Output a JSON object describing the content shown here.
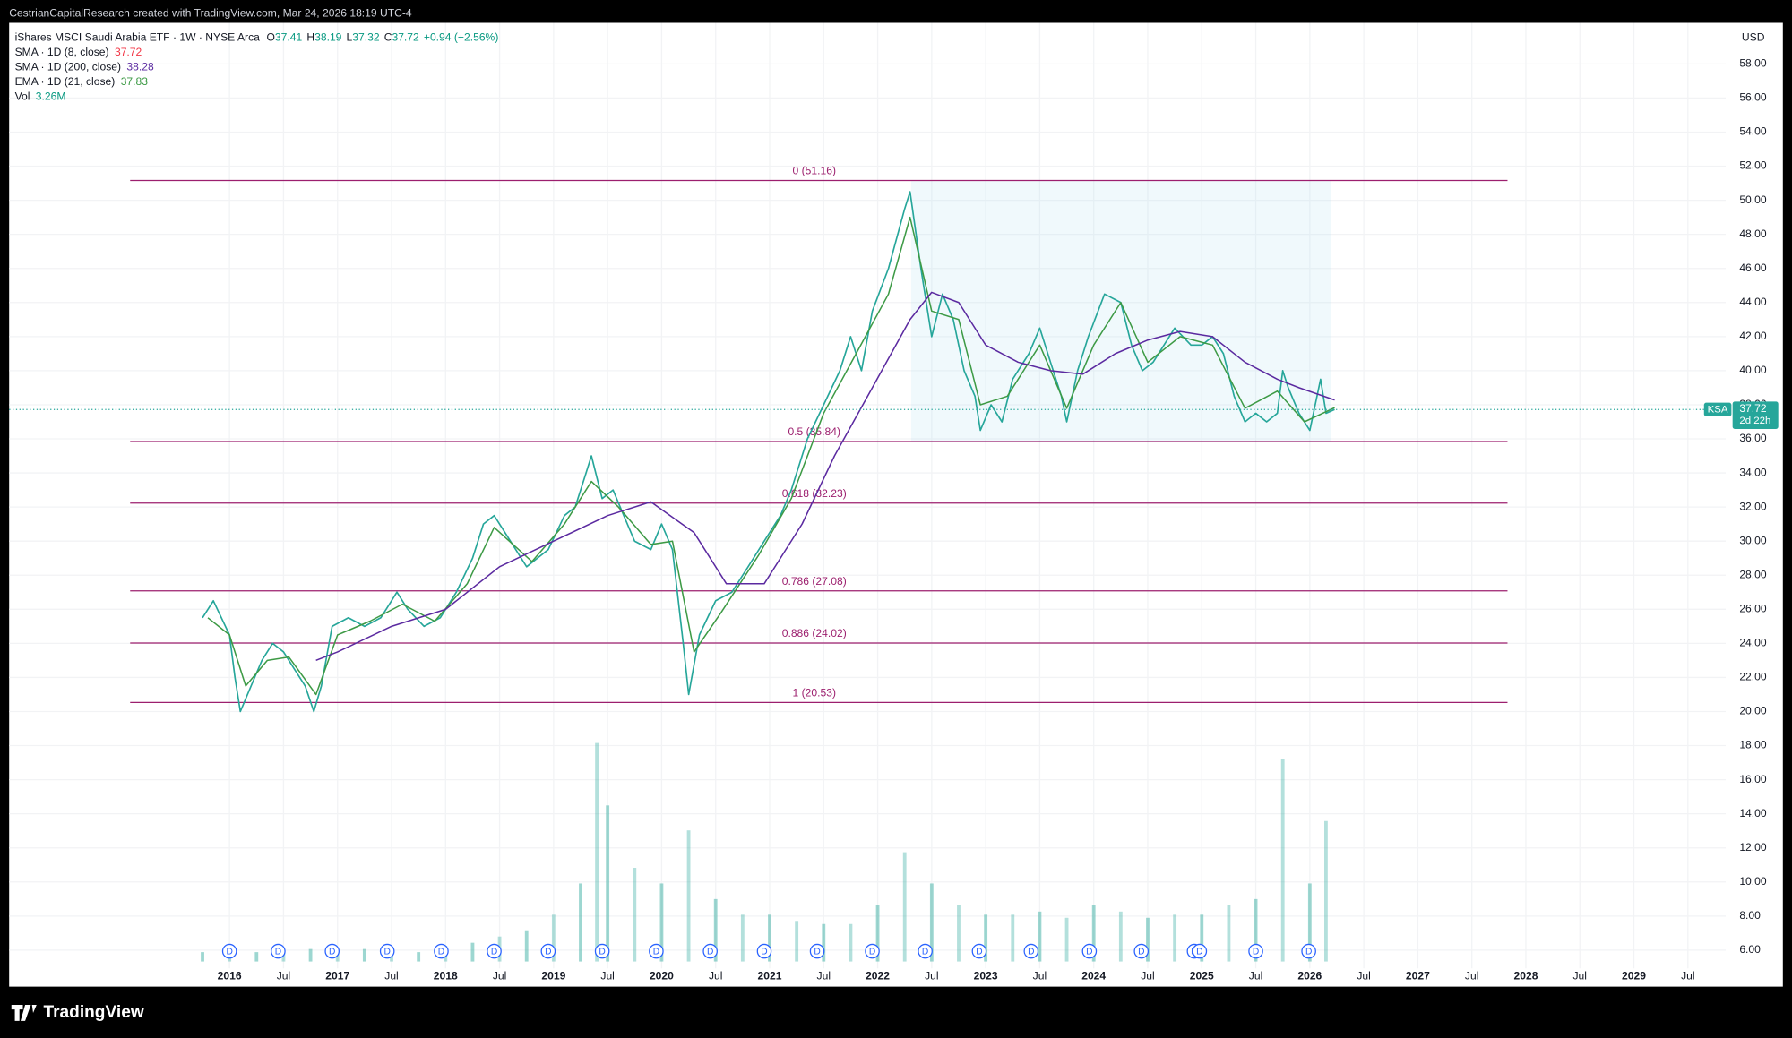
{
  "header": {
    "credit": "CestrianCapitalResearch created with TradingView.com, Mar 24, 2026 18:19 UTC-4",
    "brand": "TradingView"
  },
  "chart_data": {
    "type": "line",
    "legend": {
      "symbol": "iShares MSCI Saudi Arabia ETF · 1W · NYSE Arca",
      "ohlc": [
        {
          "label": "O",
          "value": 37.41
        },
        {
          "label": "H",
          "value": 38.19
        },
        {
          "label": "L",
          "value": 37.32
        },
        {
          "label": "C",
          "value": 37.72
        }
      ],
      "change": "+0.94 (+2.56%)",
      "indicators": [
        {
          "name": "SMA · 1D (8, close)",
          "value": 37.72,
          "color": "#f23645"
        },
        {
          "name": "SMA · 1D (200, close)",
          "value": 38.28,
          "color": "#5b2aa0"
        },
        {
          "name": "EMA · 1D (21, close)",
          "value": 37.83,
          "color": "#3d9a45"
        }
      ],
      "volume": {
        "name": "Vol",
        "value": "3.26M"
      }
    },
    "y_unit": "USD",
    "xlim": [
      2013.96,
      2029.85
    ],
    "ylim": [
      3.86,
      60.41
    ],
    "xticks": [
      {
        "value": 2016,
        "label": "2016"
      },
      {
        "value": 2016.5,
        "label": "Jul"
      },
      {
        "value": 2017,
        "label": "2017"
      },
      {
        "value": 2017.5,
        "label": "Jul"
      },
      {
        "value": 2018,
        "label": "2018"
      },
      {
        "value": 2018.5,
        "label": "Jul"
      },
      {
        "value": 2019,
        "label": "2019"
      },
      {
        "value": 2019.5,
        "label": "Jul"
      },
      {
        "value": 2020,
        "label": "2020"
      },
      {
        "value": 2020.5,
        "label": "Jul"
      },
      {
        "value": 2021,
        "label": "2021"
      },
      {
        "value": 2021.5,
        "label": "Jul"
      },
      {
        "value": 2022,
        "label": "2022"
      },
      {
        "value": 2022.5,
        "label": "Jul"
      },
      {
        "value": 2023,
        "label": "2023"
      },
      {
        "value": 2023.5,
        "label": "Jul"
      },
      {
        "value": 2024,
        "label": "2024"
      },
      {
        "value": 2024.5,
        "label": "Jul"
      },
      {
        "value": 2025,
        "label": "2025"
      },
      {
        "value": 2025.5,
        "label": "Jul"
      },
      {
        "value": 2026,
        "label": "2026"
      },
      {
        "value": 2026.5,
        "label": "Jul"
      },
      {
        "value": 2027,
        "label": "2027"
      },
      {
        "value": 2027.5,
        "label": "Jul"
      },
      {
        "value": 2028,
        "label": "2028"
      },
      {
        "value": 2028.5,
        "label": "Jul"
      },
      {
        "value": 2029,
        "label": "2029"
      },
      {
        "value": 2029.5,
        "label": "Jul"
      }
    ],
    "yticks": [
      {
        "value": 6,
        "label": "6.00"
      },
      {
        "value": 8,
        "label": "8.00"
      },
      {
        "value": 10,
        "label": "10.00"
      },
      {
        "value": 12,
        "label": "12.00"
      },
      {
        "value": 14,
        "label": "14.00"
      },
      {
        "value": 16,
        "label": "16.00"
      },
      {
        "value": 18,
        "label": "18.00"
      },
      {
        "value": 20,
        "label": "20.00"
      },
      {
        "value": 22,
        "label": "22.00"
      },
      {
        "value": 24,
        "label": "24.00"
      },
      {
        "value": 26,
        "label": "26.00"
      },
      {
        "value": 28,
        "label": "28.00"
      },
      {
        "value": 30,
        "label": "30.00"
      },
      {
        "value": 32,
        "label": "32.00"
      },
      {
        "value": 34,
        "label": "34.00"
      },
      {
        "value": 36,
        "label": "36.00"
      },
      {
        "value": 38,
        "label": "38.00"
      },
      {
        "value": 40,
        "label": "40.00"
      },
      {
        "value": 42,
        "label": "42.00"
      },
      {
        "value": 44,
        "label": "44.00"
      },
      {
        "value": 46,
        "label": "46.00"
      },
      {
        "value": 48,
        "label": "48.00"
      },
      {
        "value": 50,
        "label": "50.00"
      },
      {
        "value": 52,
        "label": "52.00"
      },
      {
        "value": 54,
        "label": "54.00"
      },
      {
        "value": 56,
        "label": "56.00"
      },
      {
        "value": 58,
        "label": "58.00"
      }
    ],
    "grid": true,
    "series": [
      {
        "name": "Price",
        "color": "#26a69a",
        "x": [
          2015.75,
          2015.85,
          2016.0,
          2016.05,
          2016.1,
          2016.2,
          2016.3,
          2016.4,
          2016.5,
          2016.6,
          2016.7,
          2016.78,
          2016.85,
          2016.95,
          2017.1,
          2017.25,
          2017.4,
          2017.5,
          2017.55,
          2017.65,
          2017.8,
          2017.95,
          2018.1,
          2018.25,
          2018.35,
          2018.45,
          2018.6,
          2018.75,
          2018.85,
          2018.95,
          2019.1,
          2019.2,
          2019.3,
          2019.35,
          2019.45,
          2019.55,
          2019.65,
          2019.75,
          2019.9,
          2020.0,
          2020.1,
          2020.2,
          2020.25,
          2020.35,
          2020.5,
          2020.65,
          2020.8,
          2020.95,
          2021.1,
          2021.2,
          2021.35,
          2021.5,
          2021.65,
          2021.75,
          2021.85,
          2021.95,
          2022.1,
          2022.25,
          2022.3,
          2022.4,
          2022.5,
          2022.6,
          2022.7,
          2022.8,
          2022.9,
          2022.95,
          2023.05,
          2023.15,
          2023.25,
          2023.4,
          2023.5,
          2023.6,
          2023.7,
          2023.75,
          2023.85,
          2023.95,
          2024.1,
          2024.25,
          2024.35,
          2024.45,
          2024.55,
          2024.65,
          2024.75,
          2024.9,
          2025.0,
          2025.1,
          2025.2,
          2025.3,
          2025.4,
          2025.5,
          2025.6,
          2025.7,
          2025.75,
          2025.8,
          2025.9,
          2026.0,
          2026.1,
          2026.15,
          2026.23
        ],
        "values": [
          25.5,
          26.5,
          24.5,
          22.0,
          20.0,
          21.5,
          23.0,
          24.0,
          23.5,
          22.5,
          21.5,
          20.0,
          21.5,
          25.0,
          25.5,
          25.0,
          25.5,
          26.5,
          27.0,
          26.0,
          25.0,
          25.5,
          27.0,
          29.0,
          31.0,
          31.5,
          30.0,
          28.5,
          29.0,
          29.5,
          31.5,
          32.0,
          34.0,
          35.0,
          32.5,
          33.0,
          31.5,
          30.0,
          29.5,
          31.0,
          29.5,
          24.0,
          21.0,
          24.5,
          26.5,
          27.0,
          28.5,
          30.0,
          31.5,
          33.0,
          36.0,
          38.0,
          40.0,
          42.0,
          40.0,
          43.5,
          46.0,
          49.5,
          50.5,
          46.0,
          42.0,
          44.5,
          43.0,
          40.0,
          38.5,
          36.5,
          38.0,
          37.0,
          39.5,
          41.0,
          42.5,
          40.5,
          38.5,
          37.0,
          40.0,
          42.0,
          44.5,
          44.0,
          41.5,
          40.0,
          40.5,
          41.5,
          42.5,
          41.5,
          41.5,
          42.0,
          41.0,
          38.5,
          37.0,
          37.5,
          37.0,
          37.5,
          40.0,
          39.0,
          37.5,
          36.5,
          39.5,
          37.5,
          37.72
        ]
      },
      {
        "name": "EMA · 1D (21, close)",
        "color": "#3d9a45",
        "x": [
          2015.8,
          2016.0,
          2016.15,
          2016.35,
          2016.55,
          2016.8,
          2017.0,
          2017.3,
          2017.6,
          2017.9,
          2018.2,
          2018.45,
          2018.8,
          2019.1,
          2019.35,
          2019.6,
          2019.9,
          2020.1,
          2020.3,
          2020.55,
          2020.9,
          2021.2,
          2021.5,
          2021.8,
          2022.1,
          2022.3,
          2022.5,
          2022.75,
          2022.95,
          2023.2,
          2023.5,
          2023.75,
          2024.0,
          2024.25,
          2024.5,
          2024.8,
          2025.1,
          2025.4,
          2025.7,
          2025.95,
          2026.23
        ],
        "values": [
          25.5,
          24.5,
          21.5,
          23.0,
          23.2,
          21.0,
          24.5,
          25.3,
          26.3,
          25.3,
          27.5,
          30.8,
          28.8,
          31.0,
          33.5,
          32.0,
          29.8,
          30.0,
          23.5,
          25.8,
          29.2,
          32.5,
          37.5,
          41.0,
          44.5,
          49.0,
          43.5,
          43.0,
          38.0,
          38.5,
          41.5,
          37.8,
          41.5,
          44.0,
          40.5,
          42.0,
          41.5,
          37.8,
          38.8,
          37.0,
          37.83
        ]
      },
      {
        "name": "SMA · 1D (200, close)",
        "color": "#5b2aa0",
        "x": [
          2016.8,
          2017.0,
          2017.5,
          2018.0,
          2018.5,
          2019.0,
          2019.5,
          2019.9,
          2020.3,
          2020.6,
          2020.95,
          2021.3,
          2021.6,
          2021.95,
          2022.3,
          2022.5,
          2022.75,
          2023.0,
          2023.3,
          2023.6,
          2023.9,
          2024.2,
          2024.5,
          2024.8,
          2025.1,
          2025.4,
          2025.7,
          2025.9,
          2026.23
        ],
        "values": [
          23,
          23.5,
          25.0,
          26.0,
          28.5,
          30.0,
          31.5,
          32.3,
          30.5,
          27.5,
          27.5,
          31.0,
          35.0,
          39.0,
          43.0,
          44.6,
          44.0,
          41.5,
          40.5,
          40.0,
          39.8,
          41.0,
          41.8,
          42.3,
          42.0,
          40.5,
          39.5,
          39.0,
          38.28
        ]
      }
    ],
    "volume_bars": {
      "color": "#26a69a",
      "ylim": [
        0,
        7.5
      ],
      "x": [
        2015.75,
        2016.0,
        2016.25,
        2016.5,
        2016.75,
        2017.0,
        2017.25,
        2017.5,
        2017.75,
        2018.0,
        2018.25,
        2018.5,
        2018.75,
        2019.0,
        2019.25,
        2019.4,
        2019.5,
        2019.75,
        2020.0,
        2020.25,
        2020.5,
        2020.75,
        2021.0,
        2021.25,
        2021.5,
        2021.75,
        2022.0,
        2022.25,
        2022.5,
        2022.75,
        2023.0,
        2023.25,
        2023.5,
        2023.75,
        2024.0,
        2024.25,
        2024.5,
        2024.75,
        2025.0,
        2025.25,
        2025.5,
        2025.75,
        2026.0,
        2026.15
      ],
      "values": [
        0.3,
        0.3,
        0.3,
        0.3,
        0.4,
        0.3,
        0.4,
        0.4,
        0.3,
        0.5,
        0.6,
        0.8,
        1.0,
        1.5,
        2.5,
        7.0,
        5.0,
        3.0,
        2.5,
        4.2,
        2.0,
        1.5,
        1.5,
        1.3,
        1.2,
        1.2,
        1.8,
        3.5,
        2.5,
        1.8,
        1.5,
        1.5,
        1.6,
        1.4,
        1.8,
        1.6,
        1.4,
        1.5,
        1.5,
        1.8,
        2.0,
        6.5,
        2.5,
        4.5
      ]
    },
    "fib_levels": [
      {
        "value": 51.16,
        "label": "0 (51.16)"
      },
      {
        "value": 35.84,
        "label": "0.5 (35.84)"
      },
      {
        "value": 32.23,
        "label": "0.618 (32.23)"
      },
      {
        "value": 27.08,
        "label": "0.786 (27.08)"
      },
      {
        "value": 24.02,
        "label": "0.886 (24.02)"
      },
      {
        "value": 20.53,
        "label": "1 (20.53)"
      }
    ],
    "fib_x_range": [
      2015.08,
      2027.83
    ],
    "range_box_x": [
      2022.31,
      2026.2
    ],
    "price_tag": {
      "symbol": "KSA",
      "value": 37.72,
      "countdown": "2d 22h"
    },
    "dividend_marker": "D",
    "dividends_x": [
      2016.0,
      2016.45,
      2016.95,
      2017.46,
      2017.96,
      2018.45,
      2018.95,
      2019.45,
      2019.95,
      2020.45,
      2020.95,
      2021.44,
      2021.95,
      2022.44,
      2022.94,
      2023.42,
      2023.96,
      2024.44,
      2024.93,
      2024.98,
      2025.5,
      2025.99
    ]
  }
}
